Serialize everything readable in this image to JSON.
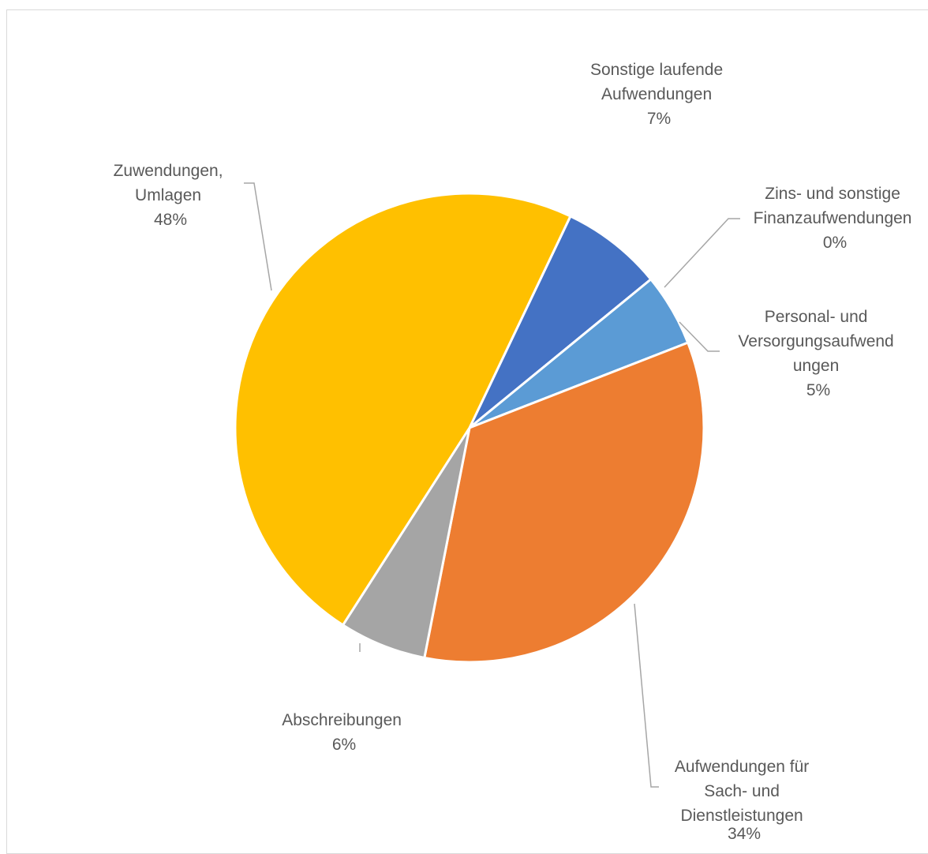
{
  "chart_data": {
    "type": "pie",
    "title": "",
    "slices": [
      {
        "label_lines": [
          "Sonstige laufende",
          "Aufwendungen"
        ],
        "percent_label": "7%",
        "value": 7,
        "color": "#4472c4"
      },
      {
        "label_lines": [
          "Zins- und sonstige",
          "Finanzaufwendungen"
        ],
        "percent_label": "0%",
        "value": 0,
        "color": "#264478"
      },
      {
        "label_lines": [
          "Personal- und",
          "Versorgungsaufwend",
          "ungen"
        ],
        "percent_label": "5%",
        "value": 5,
        "color": "#5b9bd5"
      },
      {
        "label_lines": [
          "Aufwendungen für",
          "Sach- und",
          "Dienstleistungen"
        ],
        "percent_label": "34%",
        "value": 34,
        "color": "#ed7d31"
      },
      {
        "label_lines": [
          "Abschreibungen"
        ],
        "percent_label": "6%",
        "value": 6,
        "color": "#a5a5a5"
      },
      {
        "label_lines": [
          "Zuwendungen,",
          "Umlagen"
        ],
        "percent_label": "48%",
        "value": 48,
        "color": "#ffc000"
      }
    ],
    "legend": "none",
    "start_angle": "clockwise from the top-right"
  }
}
